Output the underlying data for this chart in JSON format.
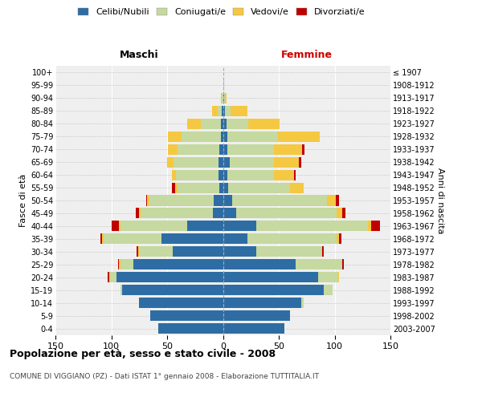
{
  "age_groups": [
    "0-4",
    "5-9",
    "10-14",
    "15-19",
    "20-24",
    "25-29",
    "30-34",
    "35-39",
    "40-44",
    "45-49",
    "50-54",
    "55-59",
    "60-64",
    "65-69",
    "70-74",
    "75-79",
    "80-84",
    "85-89",
    "90-94",
    "95-99",
    "100+"
  ],
  "birth_years": [
    "2003-2007",
    "1998-2002",
    "1993-1997",
    "1988-1992",
    "1983-1987",
    "1978-1982",
    "1973-1977",
    "1968-1972",
    "1963-1967",
    "1958-1962",
    "1953-1957",
    "1948-1952",
    "1943-1947",
    "1938-1942",
    "1933-1937",
    "1928-1932",
    "1923-1927",
    "1918-1922",
    "1913-1917",
    "1908-1912",
    "≤ 1907"
  ],
  "colors": {
    "celibi": "#2e6da4",
    "coniugati": "#c5d9a0",
    "vedovi": "#f5c842",
    "divorziati": "#c00000"
  },
  "maschi": {
    "celibi": [
      58,
      65,
      75,
      90,
      95,
      80,
      45,
      55,
      32,
      9,
      8,
      3,
      4,
      4,
      3,
      2,
      2,
      1,
      0,
      0,
      0
    ],
    "coniugati": [
      0,
      0,
      0,
      2,
      6,
      12,
      30,
      52,
      60,
      65,
      58,
      38,
      38,
      40,
      38,
      35,
      18,
      4,
      1,
      0,
      0
    ],
    "vedovi": [
      0,
      0,
      0,
      0,
      1,
      1,
      1,
      1,
      1,
      1,
      2,
      2,
      4,
      6,
      8,
      12,
      12,
      5,
      1,
      0,
      0
    ],
    "divorziati": [
      0,
      0,
      0,
      0,
      1,
      1,
      1,
      2,
      7,
      3,
      1,
      3,
      0,
      0,
      0,
      0,
      0,
      0,
      0,
      0,
      0
    ]
  },
  "femmine": {
    "celibi": [
      55,
      60,
      70,
      90,
      85,
      65,
      30,
      22,
      30,
      12,
      8,
      5,
      4,
      6,
      4,
      4,
      3,
      2,
      1,
      0,
      0
    ],
    "coniugati": [
      0,
      0,
      2,
      8,
      18,
      42,
      58,
      80,
      100,
      90,
      85,
      55,
      42,
      40,
      42,
      45,
      20,
      5,
      1,
      1,
      0
    ],
    "vedovi": [
      0,
      0,
      0,
      0,
      1,
      0,
      1,
      2,
      3,
      5,
      8,
      12,
      18,
      22,
      25,
      38,
      28,
      15,
      1,
      0,
      0
    ],
    "divorziati": [
      0,
      0,
      0,
      0,
      0,
      1,
      1,
      2,
      8,
      3,
      3,
      0,
      1,
      2,
      2,
      0,
      0,
      0,
      0,
      0,
      0
    ]
  },
  "xlim": 150,
  "title": "Popolazione per età, sesso e stato civile - 2008",
  "subtitle": "COMUNE DI VIGGIANO (PZ) - Dati ISTAT 1° gennaio 2008 - Elaborazione TUTTITALIA.IT",
  "ylabel_left": "Fasce di età",
  "ylabel_right": "Anni di nascita",
  "xlabel_maschi": "Maschi",
  "xlabel_femmine": "Femmine",
  "legend_labels": [
    "Celibi/Nubili",
    "Coniugati/e",
    "Vedovi/e",
    "Divorziati/e"
  ],
  "bg_color": "#ffffff",
  "plot_bg": "#efefef"
}
